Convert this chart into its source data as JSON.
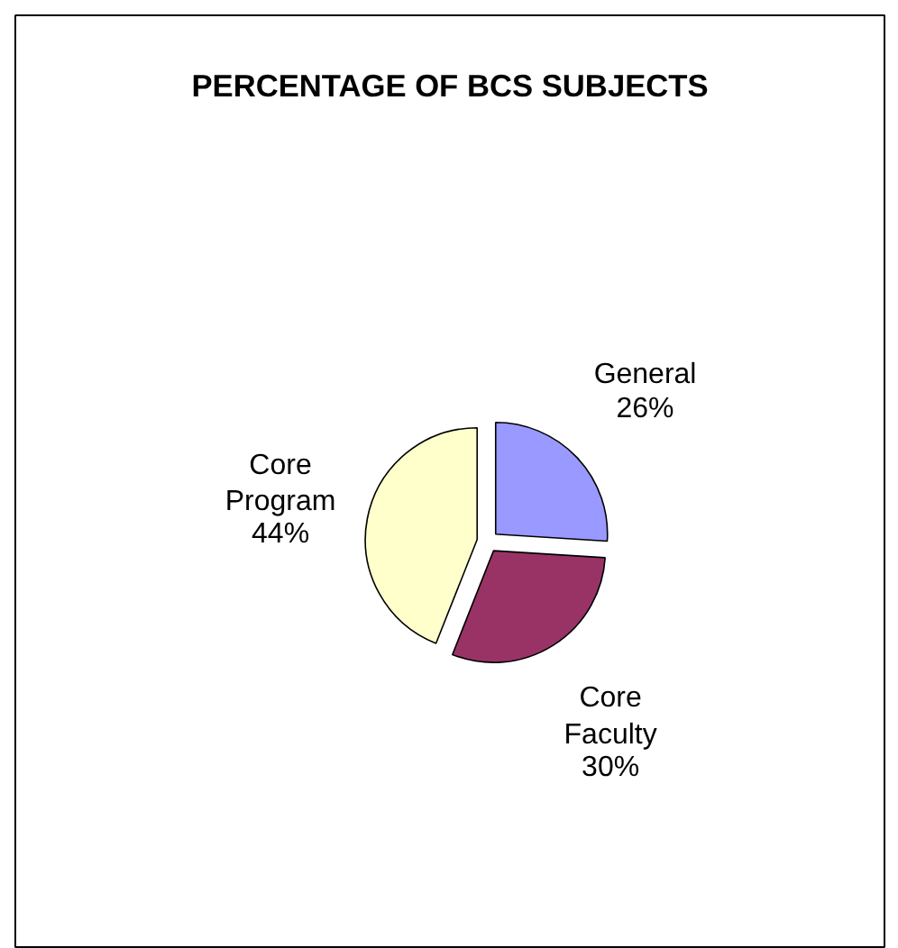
{
  "chart_data": {
    "type": "pie",
    "title": "PERCENTAGE OF BCS SUBJECTS",
    "categories": [
      "General",
      "Core Faculty",
      "Core Program"
    ],
    "values": [
      26,
      30,
      44
    ],
    "colors": [
      "#9999ff",
      "#993366",
      "#ffffcc"
    ],
    "value_labels": [
      "26%",
      "30%",
      "44%"
    ]
  }
}
